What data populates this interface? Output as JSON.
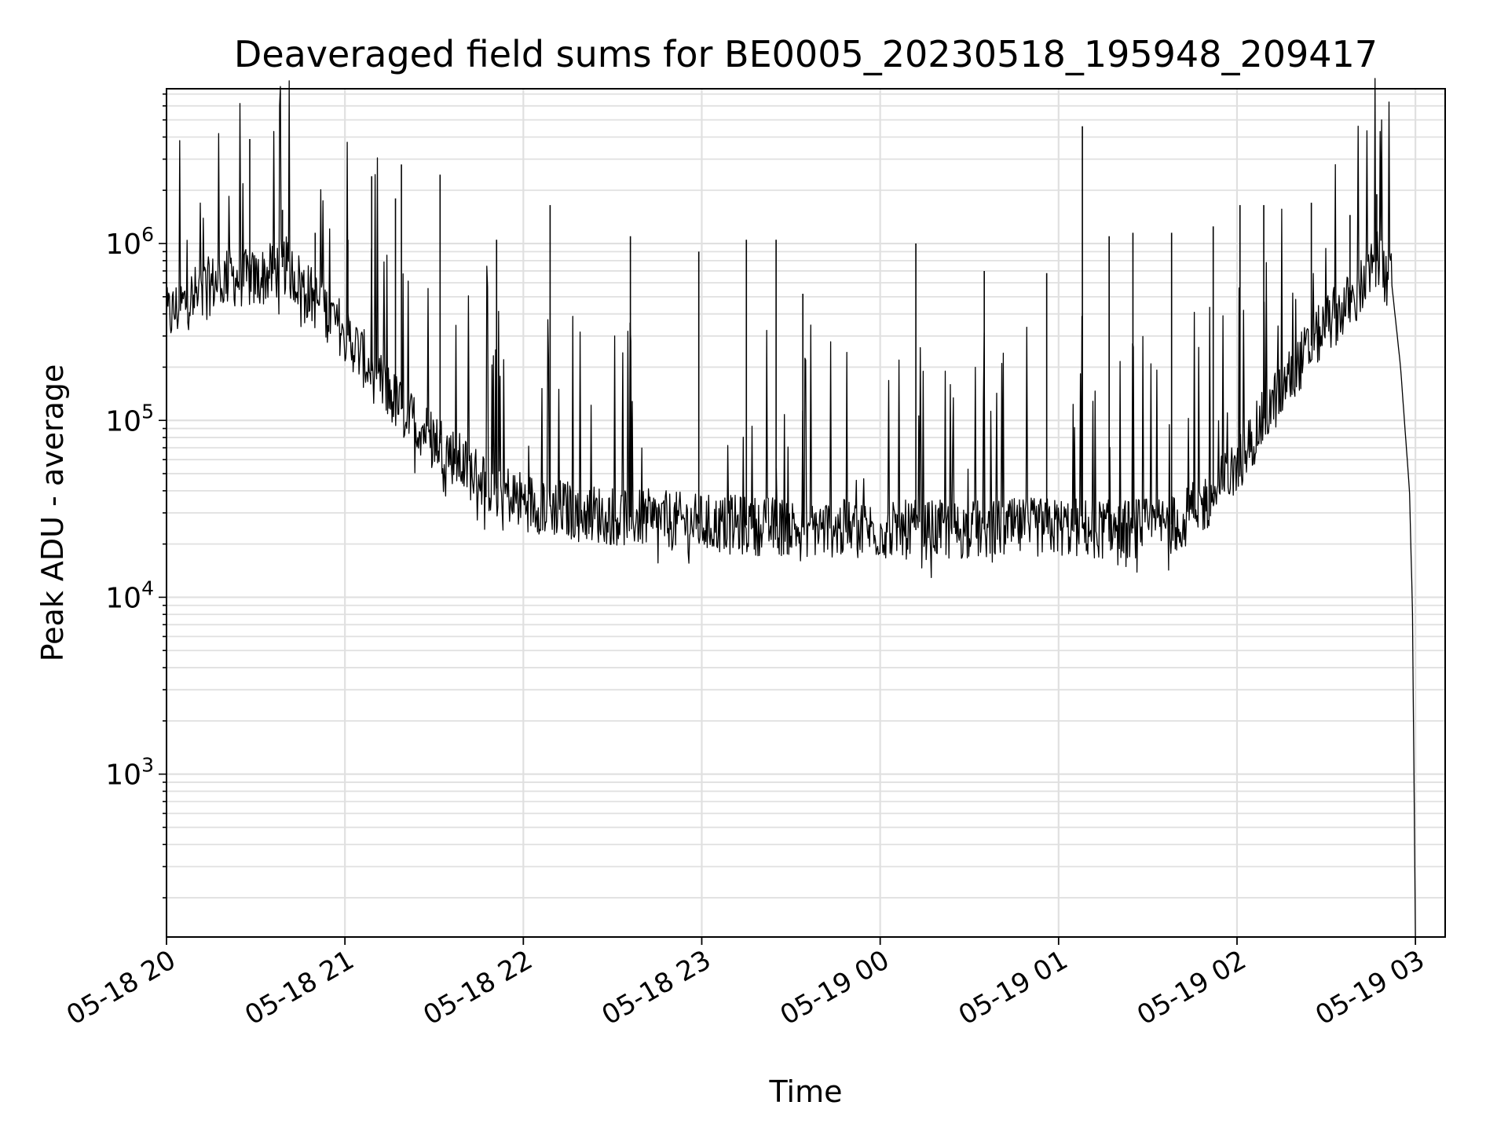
{
  "chart_data": {
    "type": "line",
    "title": "Deaveraged field sums for BE0005_20230518_195948_209417",
    "xlabel": "Time",
    "ylabel": "Peak ADU - average",
    "yscale": "log",
    "xlim": [
      "2023-05-18 20:00",
      "2023-05-19 03:10"
    ],
    "ylim": [
      120,
      7500000
    ],
    "grid": "both major and minor, light grey",
    "line_color": "#000000",
    "x_ticks": [
      {
        "value": "2023-05-18 20:00",
        "label": "05-18 20"
      },
      {
        "value": "2023-05-18 21:00",
        "label": "05-18 21"
      },
      {
        "value": "2023-05-18 22:00",
        "label": "05-18 22"
      },
      {
        "value": "2023-05-18 23:00",
        "label": "05-18 23"
      },
      {
        "value": "2023-05-19 00:00",
        "label": "05-19 00"
      },
      {
        "value": "2023-05-19 01:00",
        "label": "05-19 01"
      },
      {
        "value": "2023-05-19 02:00",
        "label": "05-19 02"
      },
      {
        "value": "2023-05-19 03:00",
        "label": "05-19 03"
      }
    ],
    "y_ticks": [
      {
        "value": 1000,
        "base": "10",
        "exp": "3"
      },
      {
        "value": 10000,
        "base": "10",
        "exp": "4"
      },
      {
        "value": 100000,
        "base": "10",
        "exp": "5"
      },
      {
        "value": 1000000,
        "base": "10",
        "exp": "6"
      }
    ],
    "series": [
      {
        "x": [
          "2023-05-18 20:00",
          "2023-05-18 20:10",
          "2023-05-18 20:20",
          "2023-05-18 20:30",
          "2023-05-18 20:40",
          "2023-05-18 20:50",
          "2023-05-18 21:00",
          "2023-05-18 21:10",
          "2023-05-18 21:20",
          "2023-05-18 21:30",
          "2023-05-18 21:40",
          "2023-05-18 21:50",
          "2023-05-18 22:00",
          "2023-05-18 22:20",
          "2023-05-18 22:40",
          "2023-05-18 23:00",
          "2023-05-18 23:30",
          "2023-05-19 00:00",
          "2023-05-19 00:30",
          "2023-05-19 01:00",
          "2023-05-19 01:20",
          "2023-05-19 01:40",
          "2023-05-19 01:50",
          "2023-05-19 02:00",
          "2023-05-19 02:10",
          "2023-05-19 02:20",
          "2023-05-19 02:30",
          "2023-05-19 02:40",
          "2023-05-19 02:48",
          "2023-05-19 02:52",
          "2023-05-19 02:55",
          "2023-05-19 02:58",
          "2023-05-19 02:59",
          "2023-05-19 03:00"
        ],
        "y": [
          380000,
          520000,
          650000,
          620000,
          750000,
          480000,
          320000,
          180000,
          110000,
          80000,
          55000,
          42000,
          35000,
          30000,
          28000,
          26000,
          25000,
          24000,
          24000,
          25000,
          24000,
          26000,
          35000,
          55000,
          110000,
          200000,
          350000,
          500000,
          850000,
          600000,
          200000,
          40000,
          8500,
          120
        ]
      }
    ],
    "spikes": [
      {
        "x": "2023-05-18 20:28",
        "y": 3900000
      },
      {
        "x": "2023-05-18 20:39",
        "y": 1550000
      },
      {
        "x": "2023-05-18 20:50",
        "y": 1150000
      },
      {
        "x": "2023-05-18 21:01",
        "y": 1050000
      },
      {
        "x": "2023-05-18 21:09",
        "y": 2400000
      },
      {
        "x": "2023-05-18 21:17",
        "y": 1800000
      },
      {
        "x": "2023-05-18 21:19",
        "y": 2800000
      },
      {
        "x": "2023-05-18 21:32",
        "y": 2450000
      },
      {
        "x": "2023-05-18 21:51",
        "y": 1050000
      },
      {
        "x": "2023-05-18 22:09",
        "y": 1650000
      },
      {
        "x": "2023-05-18 22:36",
        "y": 1100000
      },
      {
        "x": "2023-05-18 22:59",
        "y": 900000
      },
      {
        "x": "2023-05-18 23:15",
        "y": 1050000
      },
      {
        "x": "2023-05-18 23:25",
        "y": 1050000
      },
      {
        "x": "2023-05-18 23:34",
        "y": 520000
      },
      {
        "x": "2023-05-19 00:12",
        "y": 1000000
      },
      {
        "x": "2023-05-19 00:35",
        "y": 700000
      },
      {
        "x": "2023-05-19 00:56",
        "y": 680000
      },
      {
        "x": "2023-05-19 01:08",
        "y": 4600000
      },
      {
        "x": "2023-05-19 01:17",
        "y": 1100000
      },
      {
        "x": "2023-05-19 01:25",
        "y": 1150000
      },
      {
        "x": "2023-05-19 01:38",
        "y": 1150000
      },
      {
        "x": "2023-05-19 01:52",
        "y": 1250000
      },
      {
        "x": "2023-05-19 02:01",
        "y": 1650000
      },
      {
        "x": "2023-05-19 02:09",
        "y": 1650000
      },
      {
        "x": "2023-05-19 02:25",
        "y": 1700000
      },
      {
        "x": "2023-05-19 02:38",
        "y": 1450000
      },
      {
        "x": "2023-05-19 02:47",
        "y": 1900000
      }
    ]
  }
}
